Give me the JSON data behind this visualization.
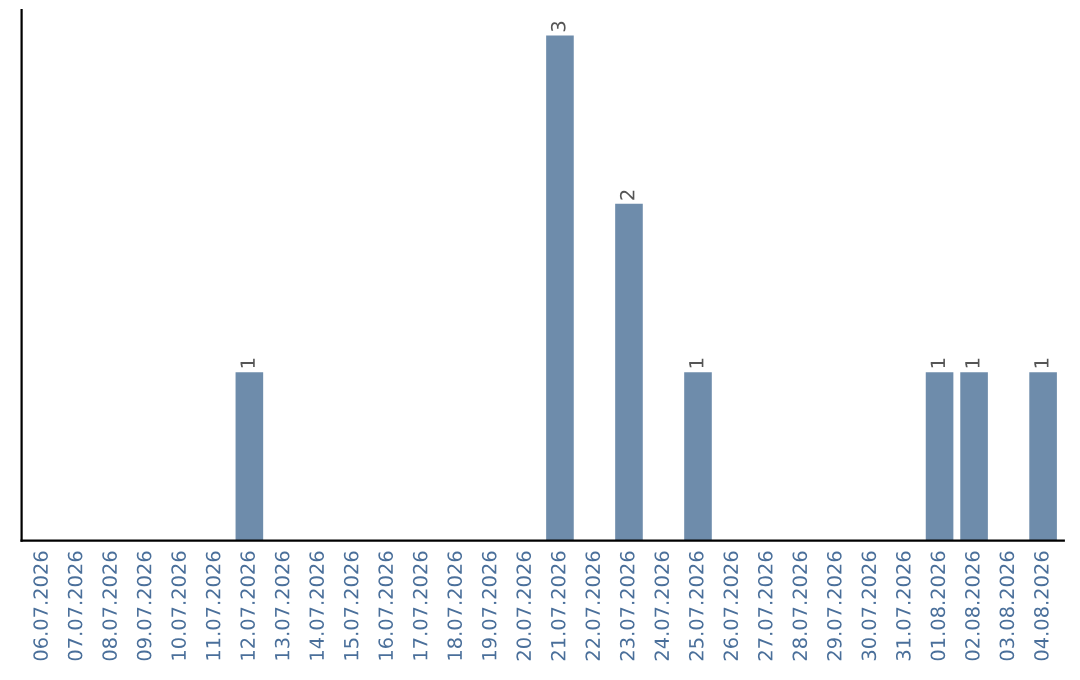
{
  "chart_data": {
    "type": "bar",
    "categories": [
      "06.07.2026",
      "07.07.2026",
      "08.07.2026",
      "09.07.2026",
      "10.07.2026",
      "11.07.2026",
      "12.07.2026",
      "13.07.2026",
      "14.07.2026",
      "15.07.2026",
      "16.07.2026",
      "17.07.2026",
      "18.07.2026",
      "19.07.2026",
      "20.07.2026",
      "21.07.2026",
      "22.07.2026",
      "23.07.2026",
      "24.07.2026",
      "25.07.2026",
      "26.07.2026",
      "27.07.2026",
      "28.07.2026",
      "29.07.2026",
      "30.07.2026",
      "31.07.2026",
      "01.08.2026",
      "02.08.2026",
      "03.08.2026",
      "04.08.2026"
    ],
    "values": [
      0,
      0,
      0,
      0,
      0,
      0,
      1,
      0,
      0,
      0,
      0,
      0,
      0,
      0,
      0,
      3,
      0,
      2,
      0,
      1,
      0,
      0,
      0,
      0,
      0,
      0,
      1,
      1,
      0,
      1
    ],
    "value_labels": [
      null,
      null,
      null,
      null,
      null,
      null,
      "1",
      null,
      null,
      null,
      null,
      null,
      null,
      null,
      null,
      "3",
      null,
      "2",
      null,
      "1",
      null,
      null,
      null,
      null,
      null,
      null,
      "1",
      "1",
      null,
      "1"
    ],
    "color": "#6e8cab",
    "tick_labels": "x",
    "grid": false,
    "legend": false
  }
}
